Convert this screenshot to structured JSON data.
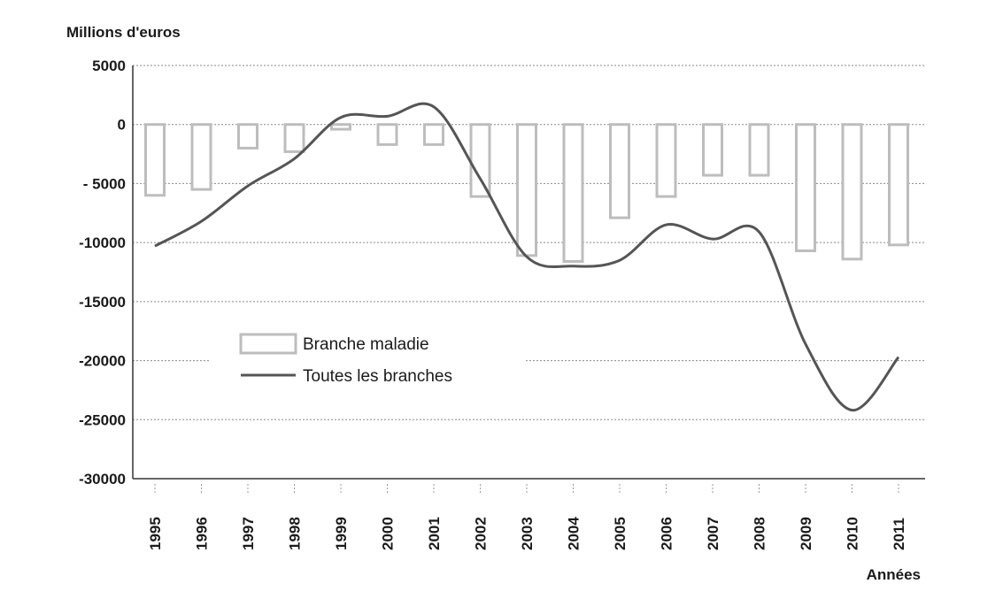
{
  "chart_data": {
    "type": "bar",
    "ylabel": "Millions d'euros",
    "xlabel": "Années",
    "ylim": [
      -30000,
      5000
    ],
    "yticks": [
      5000,
      0,
      -5000,
      -10000,
      -15000,
      -20000,
      -25000,
      -30000
    ],
    "ytick_labels": [
      "5000",
      "0",
      "- 5000",
      "-10000",
      "-15000",
      "-20000",
      "-25000",
      "-30000"
    ],
    "categories": [
      "1995",
      "1996",
      "1997",
      "1998",
      "1999",
      "2000",
      "2001",
      "2002",
      "2003",
      "2004",
      "2005",
      "2006",
      "2007",
      "2008",
      "2009",
      "2010",
      "2011"
    ],
    "grid": "horizontal dotted",
    "legend_position": "center-left",
    "series": [
      {
        "name": "Branche maladie",
        "kind": "bar",
        "color": "#bdbdbd",
        "values": [
          -6000,
          -5500,
          -2000,
          -2300,
          -400,
          -1700,
          -1700,
          -6100,
          -11100,
          -11600,
          -7900,
          -6100,
          -4300,
          -4300,
          -10700,
          -11400,
          -10200
        ]
      },
      {
        "name": "Toutes les branches",
        "kind": "line",
        "color": "#555555",
        "values": [
          -10300,
          -8200,
          -5200,
          -2900,
          600,
          700,
          1500,
          -4600,
          -11200,
          -12000,
          -11500,
          -8500,
          -9700,
          -9100,
          -18600,
          -24200,
          -19700
        ]
      }
    ]
  }
}
